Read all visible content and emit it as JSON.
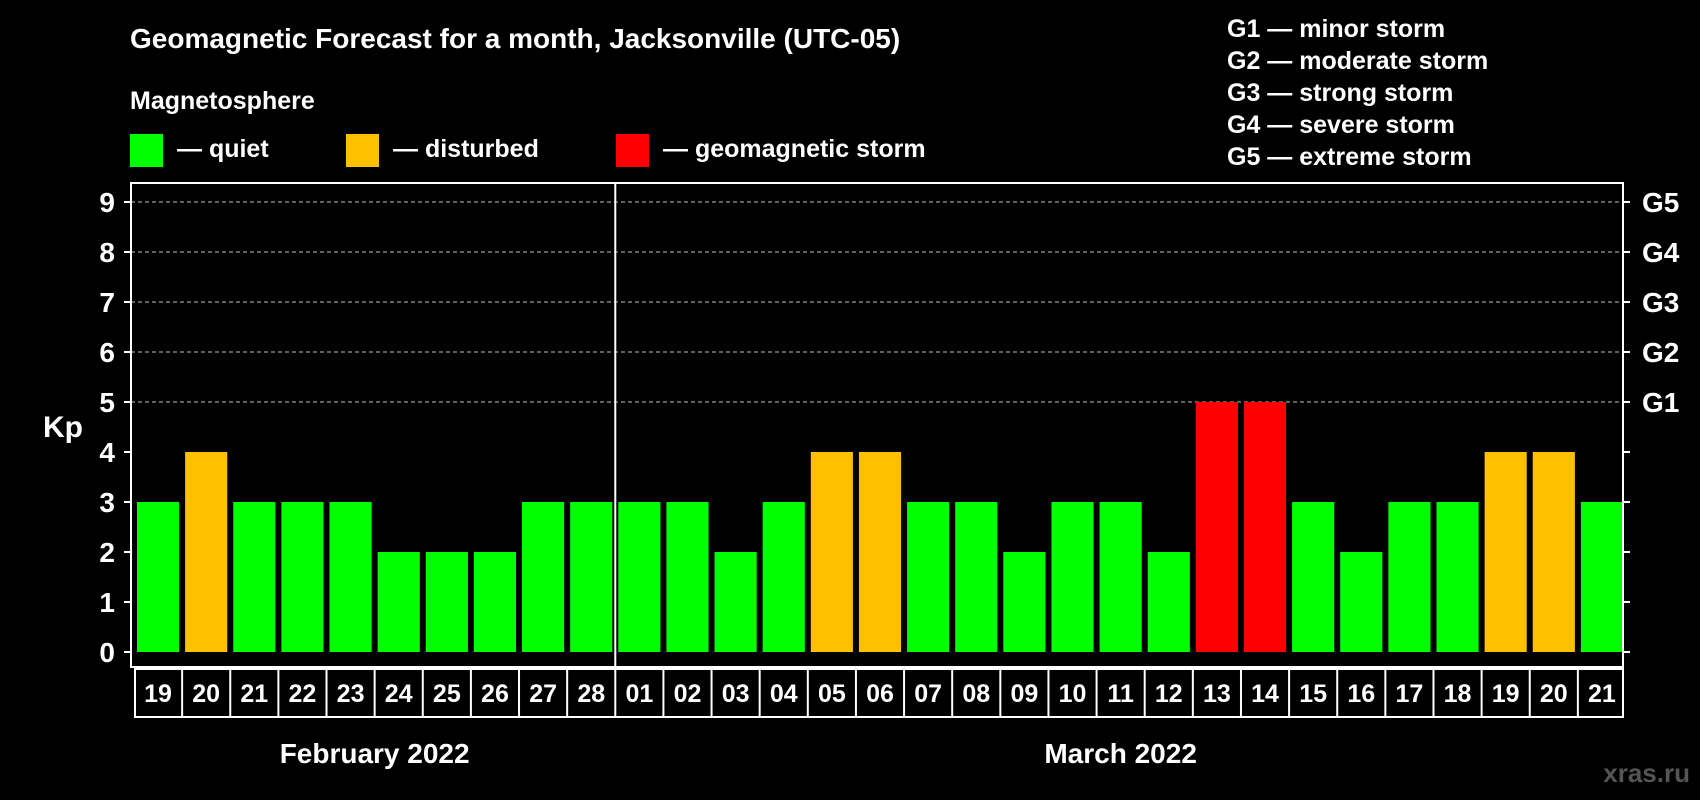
{
  "chart_data": {
    "type": "bar",
    "title": "Geomagnetic Forecast for a month, Jacksonville (UTC-05)",
    "legend_title": "Magnetosphere",
    "legend": [
      {
        "label": "— quiet",
        "color": "#00ff00"
      },
      {
        "label": "— disturbed",
        "color": "#ffc000"
      },
      {
        "label": "— geomagnetic storm",
        "color": "#ff0000"
      }
    ],
    "storm_scale": [
      "G1 — minor storm",
      "G2 — moderate storm",
      "G3 — strong storm",
      "G4 — severe storm",
      "G5 — extreme storm"
    ],
    "ylabel": "Kp",
    "ylim": [
      0,
      9
    ],
    "yticks": [
      "0",
      "1",
      "2",
      "3",
      "4",
      "5",
      "6",
      "7",
      "8",
      "9"
    ],
    "right_ticks": [
      {
        "kp": 5,
        "label": "G1"
      },
      {
        "kp": 6,
        "label": "G2"
      },
      {
        "kp": 7,
        "label": "G3"
      },
      {
        "kp": 8,
        "label": "G4"
      },
      {
        "kp": 9,
        "label": "G5"
      }
    ],
    "grid": "dashed horizontal at 5–9",
    "categories": [
      "19",
      "20",
      "21",
      "22",
      "23",
      "24",
      "25",
      "26",
      "27",
      "28",
      "01",
      "02",
      "03",
      "04",
      "05",
      "06",
      "07",
      "08",
      "09",
      "10",
      "11",
      "12",
      "13",
      "14",
      "15",
      "16",
      "17",
      "18",
      "19",
      "20",
      "21"
    ],
    "values": [
      3,
      4,
      3,
      3,
      3,
      2,
      2,
      2,
      3,
      3,
      3,
      3,
      2,
      3,
      4,
      4,
      3,
      3,
      2,
      3,
      3,
      2,
      5,
      5,
      3,
      2,
      3,
      3,
      4,
      4,
      3
    ],
    "months": [
      {
        "label": "February 2022",
        "start": 0,
        "count": 10
      },
      {
        "label": "March 2022",
        "start": 10,
        "count": 21
      }
    ],
    "colors": {
      "quiet": "#00ff00",
      "disturbed": "#ffc000",
      "storm": "#ff0000",
      "background": "#000000",
      "axis": "#ffffff"
    }
  },
  "watermark": "xras.ru"
}
